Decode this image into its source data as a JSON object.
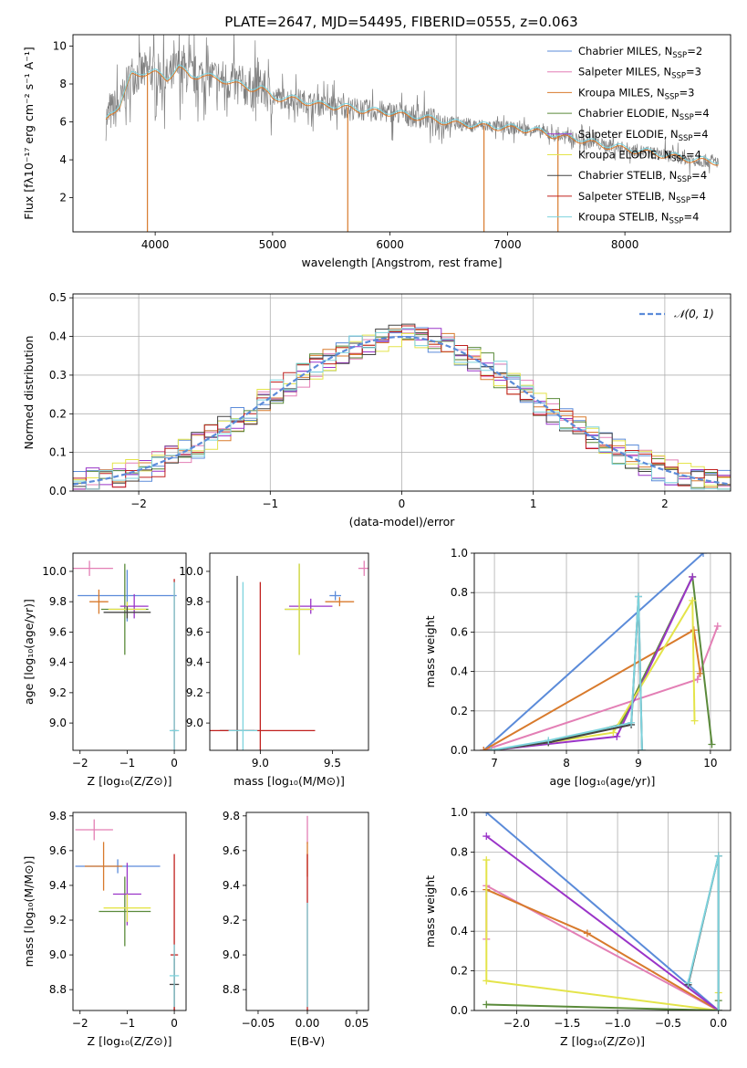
{
  "figure_title": "PLATE=2647, MJD=54495, FIBERID=0555, z=0.063",
  "models": [
    {
      "name": "Chabrier MILES",
      "nssp": "2",
      "color": "#5b8bd9"
    },
    {
      "name": "Salpeter MILES",
      "nssp": "3",
      "color": "#e37fb5"
    },
    {
      "name": "Kroupa MILES",
      "nssp": "3",
      "color": "#d87a2c"
    },
    {
      "name": "Chabrier ELODIE",
      "nssp": "4",
      "color": "#5a8a3a"
    },
    {
      "name": "Salpeter ELODIE",
      "nssp": "4",
      "color": "#9a34c8"
    },
    {
      "name": "Kroupa ELODIE",
      "nssp": "4",
      "color": "#e4e44a"
    },
    {
      "name": "Chabrier STELIB",
      "nssp": "4",
      "color": "#444444"
    },
    {
      "name": "Salpeter STELIB",
      "nssp": "4",
      "color": "#c0201e"
    },
    {
      "name": "Kroupa STELIB",
      "nssp": "4",
      "color": "#7dd3dd"
    }
  ],
  "legend_prefix": "N",
  "legend_sub": "SSP",
  "chart_data": [
    {
      "id": "spectrum",
      "type": "line",
      "xlabel": "wavelength [Angstrom, rest frame]",
      "ylabel": "Flux [fλ10⁻¹⁷ erg cm⁻² s⁻¹ A⁻¹]",
      "xlim": [
        3300,
        8900
      ],
      "ylim": [
        0.2,
        10.6
      ],
      "xticks": [
        4000,
        5000,
        6000,
        7000,
        8000
      ],
      "yticks": [
        2,
        4,
        6,
        8,
        10
      ],
      "legend": "top-right",
      "data_color": "#808080",
      "continuum": {
        "x": [
          3580,
          3620,
          3700,
          3800,
          3900,
          4000,
          4100,
          4200,
          4300,
          4400,
          4500,
          4600,
          4700,
          4800,
          4900,
          5000,
          5200,
          5400,
          5600,
          5800,
          6000,
          6200,
          6400,
          6600,
          6800,
          7000,
          7200,
          7400,
          7600,
          7800,
          8000,
          8200,
          8400,
          8600,
          8800
        ],
        "y": [
          6.1,
          6.5,
          6.9,
          8.5,
          8.6,
          8.6,
          8.3,
          8.9,
          8.4,
          8.5,
          8.3,
          8.2,
          8.0,
          7.8,
          7.8,
          7.3,
          7.2,
          6.9,
          6.8,
          6.6,
          6.5,
          6.3,
          6.1,
          5.9,
          5.8,
          5.7,
          5.6,
          5.3,
          5.1,
          4.8,
          4.6,
          4.4,
          4.2,
          4.0,
          3.9
        ]
      },
      "absorption_drops": [
        {
          "x": 3934,
          "y": 0.2
        },
        {
          "x": 5640,
          "y": 0.2
        },
        {
          "x": 6800,
          "y": 0.2
        },
        {
          "x": 7430,
          "y": 0.2
        }
      ],
      "emission_spike": {
        "x": 6563,
        "y": 10.6
      }
    },
    {
      "id": "residuals",
      "type": "step-histogram",
      "xlabel": "(data-model)/error",
      "ylabel": "Normed distribution",
      "xlim": [
        -2.5,
        2.5
      ],
      "ylim": [
        0,
        0.51
      ],
      "xticks": [
        -2,
        -1,
        0,
        1,
        2
      ],
      "yticks": [
        0.0,
        0.1,
        0.2,
        0.3,
        0.4,
        0.5
      ],
      "bin_width": 0.1,
      "gaussian_label": "𝒩(0, 1)",
      "gaussian_color": "#5b8bd9",
      "grid": true,
      "legend": "top-right"
    },
    {
      "id": "age_vs_Z",
      "type": "errorbar",
      "xlabel": "Z [log₁₀(Z/Z⊙)]",
      "ylabel": "age  [log₁₀(age/yr)]",
      "xlim": [
        -2.15,
        0.25
      ],
      "ylim": [
        8.82,
        10.12
      ],
      "xticks": [
        -2,
        -1,
        0
      ],
      "yticks": [
        9.0,
        9.2,
        9.4,
        9.6,
        9.8,
        10.0
      ],
      "points": [
        {
          "model": 0,
          "x": -1.0,
          "y": 9.84,
          "xerr": 1.05,
          "yerr": 0.17
        },
        {
          "model": 1,
          "x": -1.8,
          "y": 10.02,
          "xerr": 0.5,
          "yerr": 0.05
        },
        {
          "model": 2,
          "x": -1.6,
          "y": 9.8,
          "xerr": 0.2,
          "yerr": 0.08
        },
        {
          "model": 3,
          "x": -1.05,
          "y": 9.75,
          "xerr": 0.5,
          "yerr": 0.3
        },
        {
          "model": 4,
          "x": -0.85,
          "y": 9.77,
          "xerr": 0.3,
          "yerr": 0.08
        },
        {
          "model": 5,
          "x": -1.0,
          "y": 9.75,
          "xerr": 0.4,
          "yerr": 0.05
        },
        {
          "model": 6,
          "x": -1.0,
          "y": 9.73,
          "xerr": 0.5,
          "yerr": 0.04
        },
        {
          "model": 7,
          "x": 0.0,
          "y": 8.95,
          "xerr": 0.05,
          "yerr": 1.0
        },
        {
          "model": 8,
          "x": 0.0,
          "y": 8.95,
          "xerr": 0.1,
          "yerr": 0.98
        }
      ]
    },
    {
      "id": "age_vs_mass",
      "type": "errorbar",
      "xlabel": "mass [log₁₀(M/M⊙)]",
      "ylabel": "",
      "xlim": [
        8.65,
        9.75
      ],
      "ylim": [
        8.82,
        10.12
      ],
      "xticks": [
        9.0,
        9.5
      ],
      "yticks": [
        9.0,
        9.2,
        9.4,
        9.6,
        9.8,
        10.0
      ],
      "points": [
        {
          "model": 0,
          "x": 9.52,
          "y": 9.84,
          "xerr": 0.04,
          "yerr": 0.03
        },
        {
          "model": 1,
          "x": 9.72,
          "y": 10.02,
          "xerr": 0.04,
          "yerr": 0.05
        },
        {
          "model": 2,
          "x": 9.55,
          "y": 9.8,
          "xerr": 0.1,
          "yerr": 0.03
        },
        {
          "model": 3,
          "x": 9.27,
          "y": 9.75,
          "xerr": 0.1,
          "yerr": 0.3
        },
        {
          "model": 4,
          "x": 9.35,
          "y": 9.77,
          "xerr": 0.15,
          "yerr": 0.05
        },
        {
          "model": 5,
          "x": 9.27,
          "y": 9.75,
          "xerr": 0.1,
          "yerr": 0.3
        },
        {
          "model": 6,
          "x": 8.84,
          "y": 8.95,
          "xerr": 0.12,
          "yerr": 1.02
        },
        {
          "model": 7,
          "x": 9.0,
          "y": 8.95,
          "xerr": 0.38,
          "yerr": 0.98
        },
        {
          "model": 8,
          "x": 8.88,
          "y": 8.95,
          "xerr": 0.1,
          "yerr": 0.98
        }
      ]
    },
    {
      "id": "weight_vs_age",
      "type": "line",
      "xlabel": "age  [log₁₀(age/yr)]",
      "ylabel": "mass weight",
      "xlim": [
        6.72,
        10.28
      ],
      "ylim": [
        0,
        1
      ],
      "xticks": [
        7,
        8,
        9,
        10
      ],
      "yticks": [
        0.0,
        0.2,
        0.4,
        0.6,
        0.8,
        1.0
      ],
      "grid": true,
      "series": [
        {
          "model": 0,
          "x": [
            6.85,
            9.9
          ],
          "y": [
            0.0,
            1.0
          ]
        },
        {
          "model": 1,
          "x": [
            6.85,
            9.82,
            10.1
          ],
          "y": [
            0.0,
            0.36,
            0.63
          ]
        },
        {
          "model": 2,
          "x": [
            6.85,
            9.77,
            9.86
          ],
          "y": [
            0.0,
            0.61,
            0.39
          ]
        },
        {
          "model": 3,
          "x": [
            6.95,
            7.75,
            8.75,
            9.75,
            10.02
          ],
          "y": [
            0.0,
            0.04,
            0.13,
            0.88,
            0.03
          ]
        },
        {
          "model": 4,
          "x": [
            6.95,
            8.7,
            9.75
          ],
          "y": [
            0.0,
            0.07,
            0.88
          ]
        },
        {
          "model": 5,
          "x": [
            6.95,
            7.75,
            8.65,
            9.75,
            9.78
          ],
          "y": [
            0.0,
            0.04,
            0.09,
            0.76,
            0.15
          ]
        },
        {
          "model": 6,
          "x": [
            6.95,
            7.75,
            8.9,
            9.0,
            9.05
          ],
          "y": [
            0.0,
            0.04,
            0.13,
            0.78,
            0.0
          ]
        },
        {
          "model": 8,
          "x": [
            6.95,
            7.75,
            8.9,
            9.0,
            9.05
          ],
          "y": [
            0.0,
            0.05,
            0.14,
            0.78,
            0.0
          ]
        }
      ]
    },
    {
      "id": "mass_vs_Z",
      "type": "errorbar",
      "xlabel": "Z [log₁₀(Z/Z⊙)]",
      "ylabel": "mass [log₁₀(M/M⊙)]",
      "xlim": [
        -2.15,
        0.25
      ],
      "ylim": [
        8.68,
        9.82
      ],
      "xticks": [
        -2,
        -1,
        0
      ],
      "yticks": [
        8.8,
        9.0,
        9.2,
        9.4,
        9.6,
        9.8
      ],
      "points": [
        {
          "model": 0,
          "x": -1.2,
          "y": 9.51,
          "xerr": 0.9,
          "yerr": 0.04
        },
        {
          "model": 1,
          "x": -1.7,
          "y": 9.72,
          "xerr": 0.4,
          "yerr": 0.06
        },
        {
          "model": 2,
          "x": -1.5,
          "y": 9.51,
          "xerr": 0.4,
          "yerr": 0.14
        },
        {
          "model": 3,
          "x": -1.05,
          "y": 9.25,
          "xerr": 0.55,
          "yerr": 0.2
        },
        {
          "model": 4,
          "x": -1.0,
          "y": 9.35,
          "xerr": 0.3,
          "yerr": 0.18
        },
        {
          "model": 5,
          "x": -1.0,
          "y": 9.27,
          "xerr": 0.5,
          "yerr": 0.08
        },
        {
          "model": 6,
          "x": 0.0,
          "y": 8.83,
          "xerr": 0.1,
          "yerr": 0.15
        },
        {
          "model": 7,
          "x": 0.0,
          "y": 9.0,
          "xerr": 0.08,
          "yerr": 0.58
        },
        {
          "model": 8,
          "x": 0.0,
          "y": 8.88,
          "xerr": 0.1,
          "yerr": 0.18
        }
      ]
    },
    {
      "id": "mass_vs_ebv",
      "type": "errorbar",
      "xlabel": "E(B-V)",
      "ylabel": "",
      "xlim": [
        -0.062,
        0.062
      ],
      "ylim": [
        8.68,
        9.82
      ],
      "xticks": [
        -0.05,
        0.0,
        0.05
      ],
      "xticklabels": [
        "−0.05",
        "0.00",
        "0.05"
      ],
      "yticks": [
        8.8,
        9.0,
        9.2,
        9.4,
        9.6,
        9.8
      ],
      "points": [
        {
          "model": 1,
          "x": 0.0,
          "y": 9.72,
          "xerr": 0.0,
          "yerr": 0.08
        },
        {
          "model": 2,
          "x": 0.0,
          "y": 9.55,
          "xerr": 0.0,
          "yerr": 0.1
        },
        {
          "model": 7,
          "x": 0.0,
          "y": 9.0,
          "xerr": 0.0,
          "yerr": 0.58
        },
        {
          "model": 8,
          "x": 0.0,
          "y": 9.0,
          "xerr": 0.0,
          "yerr": 0.3
        }
      ]
    },
    {
      "id": "weight_vs_Z",
      "type": "line",
      "xlabel": "Z [log₁₀(Z/Z⊙)]",
      "ylabel": "mass weight",
      "xlim": [
        -2.42,
        0.12
      ],
      "ylim": [
        0,
        1
      ],
      "xticks": [
        -2.0,
        -1.5,
        -1.0,
        -0.5,
        0.0
      ],
      "yticks": [
        0.0,
        0.2,
        0.4,
        0.6,
        0.8,
        1.0
      ],
      "grid": true,
      "series": [
        {
          "model": 0,
          "x": [
            -2.3,
            0.0
          ],
          "y": [
            1.0,
            0.0
          ]
        },
        {
          "model": 1,
          "x": [
            -2.3,
            -2.3,
            0.0
          ],
          "y": [
            0.36,
            0.63,
            0.0
          ]
        },
        {
          "model": 2,
          "x": [
            -2.3,
            -1.3,
            0.0
          ],
          "y": [
            0.61,
            0.39,
            0.0
          ]
        },
        {
          "model": 4,
          "x": [
            -2.3,
            0.0
          ],
          "y": [
            0.88,
            0.0
          ]
        },
        {
          "model": 5,
          "x": [
            -2.3,
            -2.3,
            0.0,
            0.0
          ],
          "y": [
            0.76,
            0.15,
            0.0,
            0.09
          ]
        },
        {
          "model": 3,
          "x": [
            -2.3,
            0.0,
            0.0
          ],
          "y": [
            0.03,
            0.0,
            0.05
          ]
        },
        {
          "model": 6,
          "x": [
            -0.3,
            0.0,
            0.0
          ],
          "y": [
            0.13,
            0.78,
            0.0
          ]
        },
        {
          "model": 8,
          "x": [
            -0.3,
            0.0,
            0.0
          ],
          "y": [
            0.14,
            0.78,
            0.0
          ]
        }
      ]
    }
  ]
}
